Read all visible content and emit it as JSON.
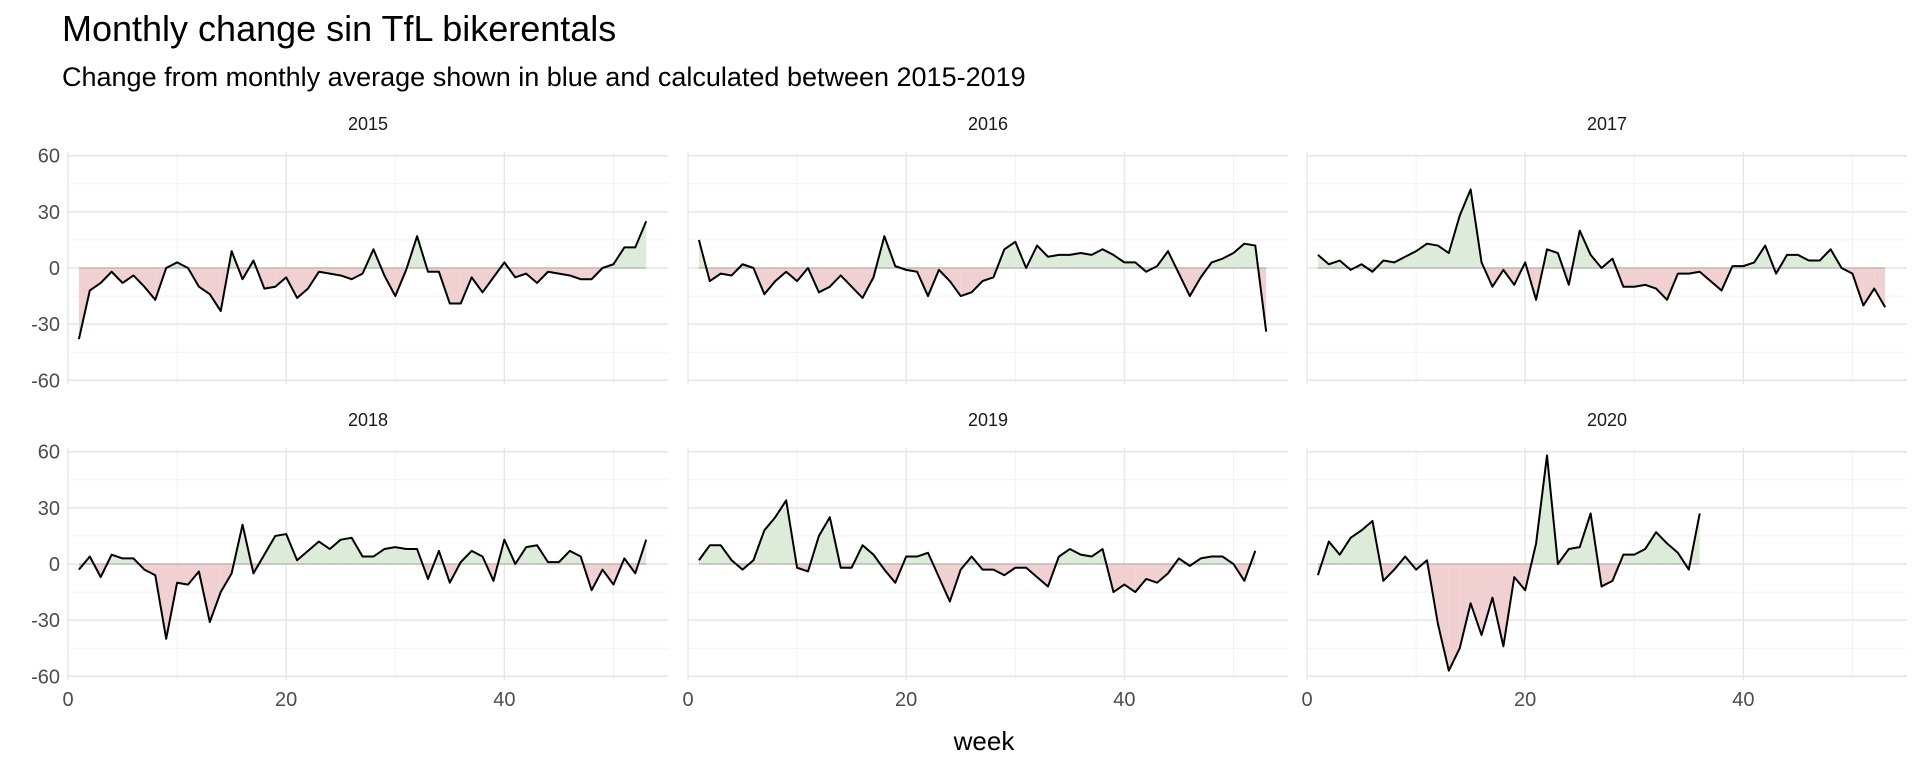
{
  "chart_data": {
    "type": "area",
    "title": "Monthly change sin TfL bikerentals",
    "subtitle": "Change from monthly average shown in blue and calculated between 2015-2019",
    "xlabel": "week",
    "ylabel": "",
    "xlim": [
      0,
      55
    ],
    "ylim": [
      -62,
      62
    ],
    "x_ticks": [
      0,
      20,
      40
    ],
    "y_ticks": [
      -60,
      -30,
      0,
      30,
      60
    ],
    "grid": true,
    "legend": "none",
    "colors": {
      "positive_fill": "#dcecd9",
      "negative_fill": "#f1d0d2",
      "line": "#000000",
      "zero_line": "#b3b3b3"
    },
    "facets": [
      {
        "label": "2015",
        "x_start": 1,
        "values": [
          -38,
          -12,
          -8,
          -2,
          -8,
          -4,
          -10,
          -17,
          0,
          3,
          0,
          -10,
          -14,
          -23,
          9,
          -6,
          4,
          -11,
          -10,
          -5,
          -16,
          -11,
          -2,
          -3,
          -4,
          -6,
          -3,
          10,
          -4,
          -15,
          -1,
          17,
          -2,
          -2,
          -19,
          -19,
          -5,
          -13,
          -5,
          3,
          -5,
          -3,
          -8,
          -2,
          -3,
          -4,
          -6,
          -6,
          0,
          2,
          11,
          11,
          25
        ]
      },
      {
        "label": "2016",
        "x_start": 1,
        "values": [
          15,
          -7,
          -3,
          -4,
          2,
          0,
          -14,
          -7,
          -2,
          -7,
          0,
          -13,
          -10,
          -4,
          -10,
          -16,
          -5,
          17,
          1,
          -1,
          -2,
          -15,
          -1,
          -7,
          -15,
          -13,
          -7,
          -5,
          10,
          14,
          0,
          12,
          6,
          7,
          7,
          8,
          7,
          10,
          7,
          3,
          3,
          -2,
          1,
          9,
          -3,
          -15,
          -5,
          3,
          5,
          8,
          13,
          12,
          -34
        ]
      },
      {
        "label": "2017",
        "x_start": 1,
        "values": [
          7,
          2,
          4,
          -1,
          2,
          -2,
          4,
          3,
          6,
          9,
          13,
          12,
          8,
          28,
          42,
          3,
          -10,
          -1,
          -9,
          3,
          -17,
          10,
          8,
          -9,
          20,
          7,
          0,
          5,
          -10,
          -10,
          -9,
          -11,
          -17,
          -3,
          -3,
          -2,
          -7,
          -12,
          1,
          1,
          3,
          12,
          -3,
          7,
          7,
          4,
          4,
          10,
          0,
          -3,
          -20,
          -11,
          -21
        ]
      },
      {
        "label": "2018",
        "x_start": 1,
        "values": [
          -3,
          4,
          -7,
          5,
          3,
          3,
          -3,
          -6,
          -40,
          -10,
          -11,
          -4,
          -31,
          -15,
          -5,
          21,
          -5,
          5,
          15,
          16,
          2,
          7,
          12,
          8,
          13,
          14,
          4,
          4,
          8,
          9,
          8,
          8,
          -8,
          7,
          -10,
          1,
          7,
          4,
          -9,
          13,
          0,
          9,
          10,
          1,
          1,
          7,
          4,
          -14,
          -3,
          -11,
          3,
          -5,
          13
        ]
      },
      {
        "label": "2019",
        "x_start": 1,
        "values": [
          2,
          10,
          10,
          2,
          -3,
          2,
          18,
          25,
          34,
          -2,
          -4,
          15,
          25,
          -2,
          -2,
          10,
          5,
          -3,
          -10,
          4,
          4,
          6,
          -7,
          -20,
          -3,
          4,
          -3,
          -3,
          -6,
          -2,
          -2,
          -7,
          -12,
          4,
          8,
          5,
          4,
          8,
          -15,
          -11,
          -15,
          -8,
          -10,
          -5,
          3,
          -1,
          3,
          4,
          4,
          0,
          -9,
          7
        ]
      },
      {
        "label": "2020",
        "x_start": 1,
        "values": [
          -6,
          12,
          5,
          14,
          18,
          23,
          -9,
          -3,
          4,
          -3,
          2,
          -32,
          -57,
          -45,
          -21,
          -38,
          -18,
          -44,
          -7,
          -14,
          11,
          58,
          0,
          8,
          9,
          27,
          -12,
          -9,
          5,
          5,
          8,
          17,
          11,
          6,
          -3,
          27
        ]
      }
    ]
  }
}
